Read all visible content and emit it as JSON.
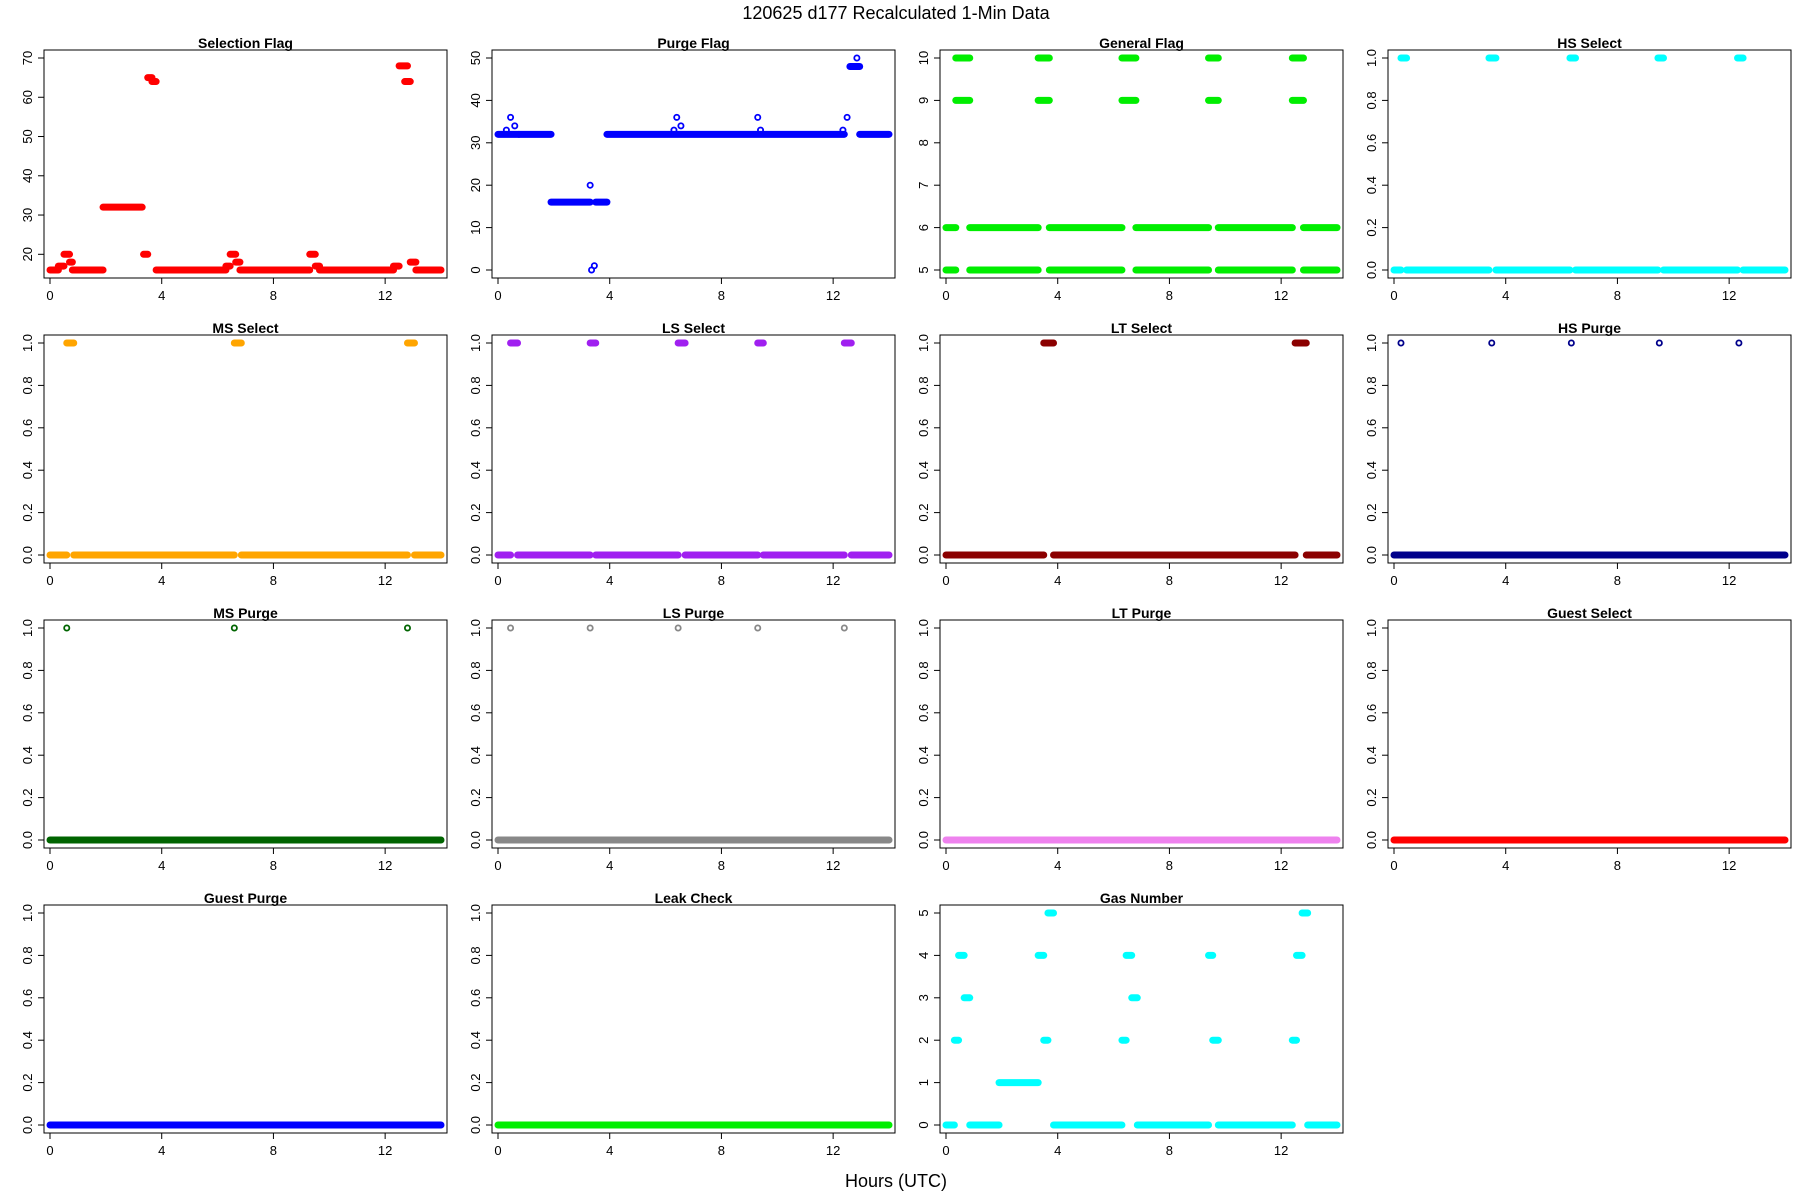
{
  "figure": {
    "title": "120625   d177   Recalculated 1-Min Data",
    "xlabel": "Hours (UTC)"
  },
  "chart_data": [
    {
      "type": "scatter",
      "title": "Selection Flag",
      "color": "#ff0000",
      "xlim": [
        0,
        14
      ],
      "ylim": [
        16,
        70
      ],
      "xticks": [
        0,
        4,
        8,
        12
      ],
      "yticks": [
        20,
        30,
        40,
        50,
        60,
        70
      ],
      "segments": [
        {
          "x": [
            0,
            0.3
          ],
          "y": 16
        },
        {
          "x": [
            0.3,
            0.5
          ],
          "y": 17
        },
        {
          "x": [
            0.5,
            0.7
          ],
          "y": 20
        },
        {
          "x": [
            0.7,
            0.8
          ],
          "y": 18
        },
        {
          "x": [
            0.8,
            1.9
          ],
          "y": 16
        },
        {
          "x": [
            1.9,
            3.3
          ],
          "y": 32
        },
        {
          "x": [
            3.35,
            3.5
          ],
          "y": 20
        },
        {
          "x": [
            3.5,
            3.65
          ],
          "y": 65
        },
        {
          "x": [
            3.65,
            3.8
          ],
          "y": 64
        },
        {
          "x": [
            3.8,
            6.3
          ],
          "y": 16
        },
        {
          "x": [
            6.3,
            6.45
          ],
          "y": 17
        },
        {
          "x": [
            6.45,
            6.65
          ],
          "y": 20
        },
        {
          "x": [
            6.65,
            6.8
          ],
          "y": 18
        },
        {
          "x": [
            6.8,
            9.3
          ],
          "y": 16
        },
        {
          "x": [
            9.3,
            9.5
          ],
          "y": 20
        },
        {
          "x": [
            9.5,
            9.65
          ],
          "y": 17
        },
        {
          "x": [
            9.65,
            12.3
          ],
          "y": 16
        },
        {
          "x": [
            12.3,
            12.5
          ],
          "y": 17
        },
        {
          "x": [
            12.5,
            12.8
          ],
          "y": 68
        },
        {
          "x": [
            12.7,
            12.9
          ],
          "y": 64
        },
        {
          "x": [
            12.9,
            13.1
          ],
          "y": 18
        },
        {
          "x": [
            13.1,
            14
          ],
          "y": 16
        }
      ],
      "points": []
    },
    {
      "type": "scatter",
      "title": "Purge Flag",
      "color": "#0000ff",
      "xlim": [
        0,
        14
      ],
      "ylim": [
        0,
        50
      ],
      "xticks": [
        0,
        4,
        8,
        12
      ],
      "yticks": [
        0,
        10,
        20,
        30,
        40,
        50
      ],
      "segments": [
        {
          "x": [
            0,
            1.9
          ],
          "y": 32
        },
        {
          "x": [
            1.9,
            3.3
          ],
          "y": 16
        },
        {
          "x": [
            3.5,
            3.9
          ],
          "y": 16
        },
        {
          "x": [
            3.9,
            12.4
          ],
          "y": 32
        },
        {
          "x": [
            12.6,
            12.95
          ],
          "y": 48
        },
        {
          "x": [
            12.95,
            14
          ],
          "y": 32
        }
      ],
      "points": [
        {
          "x": 0.3,
          "y": 33
        },
        {
          "x": 0.45,
          "y": 36
        },
        {
          "x": 0.6,
          "y": 34
        },
        {
          "x": 0.75,
          "y": 32
        },
        {
          "x": 3.3,
          "y": 20
        },
        {
          "x": 3.35,
          "y": 0
        },
        {
          "x": 3.45,
          "y": 1
        },
        {
          "x": 6.3,
          "y": 33
        },
        {
          "x": 6.4,
          "y": 36
        },
        {
          "x": 6.55,
          "y": 34
        },
        {
          "x": 9.3,
          "y": 36
        },
        {
          "x": 9.4,
          "y": 33
        },
        {
          "x": 12.35,
          "y": 33
        },
        {
          "x": 12.5,
          "y": 36
        },
        {
          "x": 12.85,
          "y": 50
        }
      ]
    },
    {
      "type": "scatter",
      "title": "General Flag",
      "color": "#00ee00",
      "xlim": [
        0,
        14
      ],
      "ylim": [
        5,
        10
      ],
      "xticks": [
        0,
        4,
        8,
        12
      ],
      "yticks": [
        5,
        6,
        7,
        8,
        9,
        10
      ],
      "segments": [
        {
          "x": [
            0,
            0.35
          ],
          "y": 5
        },
        {
          "x": [
            0,
            0.35
          ],
          "y": 6
        },
        {
          "x": [
            0.35,
            0.85
          ],
          "y": 10
        },
        {
          "x": [
            0.35,
            0.85
          ],
          "y": 9
        },
        {
          "x": [
            0.85,
            3.3
          ],
          "y": 5
        },
        {
          "x": [
            0.85,
            3.3
          ],
          "y": 6
        },
        {
          "x": [
            3.3,
            3.7
          ],
          "y": 10
        },
        {
          "x": [
            3.3,
            3.7
          ],
          "y": 9
        },
        {
          "x": [
            3.7,
            6.3
          ],
          "y": 5
        },
        {
          "x": [
            3.7,
            6.3
          ],
          "y": 6
        },
        {
          "x": [
            6.3,
            6.8
          ],
          "y": 10
        },
        {
          "x": [
            6.3,
            6.8
          ],
          "y": 9
        },
        {
          "x": [
            6.8,
            9.4
          ],
          "y": 5
        },
        {
          "x": [
            6.8,
            9.4
          ],
          "y": 6
        },
        {
          "x": [
            9.4,
            9.75
          ],
          "y": 10
        },
        {
          "x": [
            9.4,
            9.75
          ],
          "y": 9
        },
        {
          "x": [
            9.75,
            12.4
          ],
          "y": 5
        },
        {
          "x": [
            9.75,
            12.4
          ],
          "y": 6
        },
        {
          "x": [
            12.4,
            12.8
          ],
          "y": 10
        },
        {
          "x": [
            12.4,
            12.8
          ],
          "y": 9
        },
        {
          "x": [
            12.8,
            14
          ],
          "y": 5
        },
        {
          "x": [
            12.8,
            14
          ],
          "y": 6
        }
      ],
      "points": []
    },
    {
      "type": "scatter",
      "title": "HS Select",
      "color": "#00ffff",
      "xlim": [
        0,
        14
      ],
      "ylim": [
        0,
        1
      ],
      "xticks": [
        0,
        4,
        8,
        12
      ],
      "yticks": [
        0.0,
        0.2,
        0.4,
        0.6,
        0.8,
        1.0
      ],
      "segments": [
        {
          "x": [
            0,
            0.25
          ],
          "y": 0
        },
        {
          "x": [
            0.25,
            0.45
          ],
          "y": 1
        },
        {
          "x": [
            0.45,
            3.4
          ],
          "y": 0
        },
        {
          "x": [
            3.4,
            3.65
          ],
          "y": 1
        },
        {
          "x": [
            3.65,
            6.3
          ],
          "y": 0
        },
        {
          "x": [
            6.3,
            6.5
          ],
          "y": 1
        },
        {
          "x": [
            6.5,
            9.45
          ],
          "y": 0
        },
        {
          "x": [
            9.45,
            9.65
          ],
          "y": 1
        },
        {
          "x": [
            9.65,
            12.3
          ],
          "y": 0
        },
        {
          "x": [
            12.3,
            12.5
          ],
          "y": 1
        },
        {
          "x": [
            12.5,
            14
          ],
          "y": 0
        }
      ],
      "points": []
    },
    {
      "type": "scatter",
      "title": "MS Select",
      "color": "#ffa500",
      "xlim": [
        0,
        14
      ],
      "ylim": [
        0,
        1
      ],
      "xticks": [
        0,
        4,
        8,
        12
      ],
      "yticks": [
        0.0,
        0.2,
        0.4,
        0.6,
        0.8,
        1.0
      ],
      "segments": [
        {
          "x": [
            0,
            0.6
          ],
          "y": 0
        },
        {
          "x": [
            0.6,
            0.85
          ],
          "y": 1
        },
        {
          "x": [
            0.85,
            6.6
          ],
          "y": 0
        },
        {
          "x": [
            6.6,
            6.85
          ],
          "y": 1
        },
        {
          "x": [
            6.85,
            12.8
          ],
          "y": 0
        },
        {
          "x": [
            12.8,
            13.05
          ],
          "y": 1
        },
        {
          "x": [
            13.05,
            14
          ],
          "y": 0
        }
      ],
      "points": []
    },
    {
      "type": "scatter",
      "title": "LS Select",
      "color": "#a020f0",
      "xlim": [
        0,
        14
      ],
      "ylim": [
        0,
        1
      ],
      "xticks": [
        0,
        4,
        8,
        12
      ],
      "yticks": [
        0.0,
        0.2,
        0.4,
        0.6,
        0.8,
        1.0
      ],
      "segments": [
        {
          "x": [
            0,
            0.45
          ],
          "y": 0
        },
        {
          "x": [
            0.45,
            0.7
          ],
          "y": 1
        },
        {
          "x": [
            0.7,
            3.3
          ],
          "y": 0
        },
        {
          "x": [
            3.3,
            3.5
          ],
          "y": 1
        },
        {
          "x": [
            3.5,
            6.45
          ],
          "y": 0
        },
        {
          "x": [
            6.45,
            6.7
          ],
          "y": 1
        },
        {
          "x": [
            6.7,
            9.3
          ],
          "y": 0
        },
        {
          "x": [
            9.3,
            9.5
          ],
          "y": 1
        },
        {
          "x": [
            9.5,
            12.4
          ],
          "y": 0
        },
        {
          "x": [
            12.4,
            12.65
          ],
          "y": 1
        },
        {
          "x": [
            12.65,
            14
          ],
          "y": 0
        }
      ],
      "points": []
    },
    {
      "type": "scatter",
      "title": "LT Select",
      "color": "#8b0000",
      "xlim": [
        0,
        14
      ],
      "ylim": [
        0,
        1
      ],
      "xticks": [
        0,
        4,
        8,
        12
      ],
      "yticks": [
        0.0,
        0.2,
        0.4,
        0.6,
        0.8,
        1.0
      ],
      "segments": [
        {
          "x": [
            0,
            3.5
          ],
          "y": 0
        },
        {
          "x": [
            3.5,
            3.85
          ],
          "y": 1
        },
        {
          "x": [
            3.85,
            12.5
          ],
          "y": 0
        },
        {
          "x": [
            12.5,
            12.9
          ],
          "y": 1
        },
        {
          "x": [
            12.9,
            14
          ],
          "y": 0
        }
      ],
      "points": []
    },
    {
      "type": "scatter",
      "title": "HS Purge",
      "color": "#00008b",
      "xlim": [
        0,
        14
      ],
      "ylim": [
        0,
        1
      ],
      "xticks": [
        0,
        4,
        8,
        12
      ],
      "yticks": [
        0.0,
        0.2,
        0.4,
        0.6,
        0.8,
        1.0
      ],
      "segments": [
        {
          "x": [
            0,
            14
          ],
          "y": 0
        }
      ],
      "points": [
        {
          "x": 0.25,
          "y": 1
        },
        {
          "x": 3.5,
          "y": 1
        },
        {
          "x": 6.35,
          "y": 1
        },
        {
          "x": 9.5,
          "y": 1
        },
        {
          "x": 12.35,
          "y": 1
        }
      ]
    },
    {
      "type": "scatter",
      "title": "MS Purge",
      "color": "#006400",
      "xlim": [
        0,
        14
      ],
      "ylim": [
        0,
        1
      ],
      "xticks": [
        0,
        4,
        8,
        12
      ],
      "yticks": [
        0.0,
        0.2,
        0.4,
        0.6,
        0.8,
        1.0
      ],
      "segments": [
        {
          "x": [
            0,
            14
          ],
          "y": 0
        }
      ],
      "points": [
        {
          "x": 0.6,
          "y": 1
        },
        {
          "x": 6.6,
          "y": 1
        },
        {
          "x": 12.8,
          "y": 1
        }
      ]
    },
    {
      "type": "scatter",
      "title": "LS Purge",
      "color": "#888888",
      "xlim": [
        0,
        14
      ],
      "ylim": [
        0,
        1
      ],
      "xticks": [
        0,
        4,
        8,
        12
      ],
      "yticks": [
        0.0,
        0.2,
        0.4,
        0.6,
        0.8,
        1.0
      ],
      "segments": [
        {
          "x": [
            0,
            14
          ],
          "y": 0
        }
      ],
      "points": [
        {
          "x": 0.45,
          "y": 1
        },
        {
          "x": 3.3,
          "y": 1
        },
        {
          "x": 6.45,
          "y": 1
        },
        {
          "x": 9.3,
          "y": 1
        },
        {
          "x": 12.4,
          "y": 1
        }
      ]
    },
    {
      "type": "scatter",
      "title": "LT Purge",
      "color": "#ee82ee",
      "xlim": [
        0,
        14
      ],
      "ylim": [
        0,
        1
      ],
      "xticks": [
        0,
        4,
        8,
        12
      ],
      "yticks": [
        0.0,
        0.2,
        0.4,
        0.6,
        0.8,
        1.0
      ],
      "segments": [
        {
          "x": [
            0,
            14
          ],
          "y": 0
        }
      ],
      "points": []
    },
    {
      "type": "scatter",
      "title": "Guest Select",
      "color": "#ff0000",
      "xlim": [
        0,
        14
      ],
      "ylim": [
        0,
        1
      ],
      "xticks": [
        0,
        4,
        8,
        12
      ],
      "yticks": [
        0.0,
        0.2,
        0.4,
        0.6,
        0.8,
        1.0
      ],
      "segments": [
        {
          "x": [
            0,
            14
          ],
          "y": 0
        }
      ],
      "points": []
    },
    {
      "type": "scatter",
      "title": "Guest Purge",
      "color": "#0000ff",
      "xlim": [
        0,
        14
      ],
      "ylim": [
        0,
        1
      ],
      "xticks": [
        0,
        4,
        8,
        12
      ],
      "yticks": [
        0.0,
        0.2,
        0.4,
        0.6,
        0.8,
        1.0
      ],
      "segments": [
        {
          "x": [
            0,
            14
          ],
          "y": 0
        }
      ],
      "points": []
    },
    {
      "type": "scatter",
      "title": "Leak Check",
      "color": "#00ee00",
      "xlim": [
        0,
        14
      ],
      "ylim": [
        0,
        1
      ],
      "xticks": [
        0,
        4,
        8,
        12
      ],
      "yticks": [
        0.0,
        0.2,
        0.4,
        0.6,
        0.8,
        1.0
      ],
      "segments": [
        {
          "x": [
            0,
            14
          ],
          "y": 0
        }
      ],
      "points": []
    },
    {
      "type": "scatter",
      "title": "Gas Number",
      "color": "#00ffff",
      "xlim": [
        0,
        14
      ],
      "ylim": [
        0,
        5
      ],
      "xticks": [
        0,
        4,
        8,
        12
      ],
      "yticks": [
        0,
        1,
        2,
        3,
        4,
        5
      ],
      "segments": [
        {
          "x": [
            0,
            0.3
          ],
          "y": 0
        },
        {
          "x": [
            0.3,
            0.45
          ],
          "y": 2
        },
        {
          "x": [
            0.45,
            0.65
          ],
          "y": 4
        },
        {
          "x": [
            0.65,
            0.85
          ],
          "y": 3
        },
        {
          "x": [
            0.85,
            1.9
          ],
          "y": 0
        },
        {
          "x": [
            1.9,
            3.3
          ],
          "y": 1
        },
        {
          "x": [
            3.3,
            3.5
          ],
          "y": 4
        },
        {
          "x": [
            3.5,
            3.65
          ],
          "y": 2
        },
        {
          "x": [
            3.65,
            3.85
          ],
          "y": 5
        },
        {
          "x": [
            3.85,
            6.3
          ],
          "y": 0
        },
        {
          "x": [
            6.3,
            6.45
          ],
          "y": 2
        },
        {
          "x": [
            6.45,
            6.65
          ],
          "y": 4
        },
        {
          "x": [
            6.65,
            6.85
          ],
          "y": 3
        },
        {
          "x": [
            6.85,
            9.4
          ],
          "y": 0
        },
        {
          "x": [
            9.4,
            9.55
          ],
          "y": 4
        },
        {
          "x": [
            9.55,
            9.75
          ],
          "y": 2
        },
        {
          "x": [
            9.75,
            12.4
          ],
          "y": 0
        },
        {
          "x": [
            12.4,
            12.55
          ],
          "y": 2
        },
        {
          "x": [
            12.55,
            12.75
          ],
          "y": 4
        },
        {
          "x": [
            12.75,
            12.95
          ],
          "y": 5
        },
        {
          "x": [
            12.95,
            14
          ],
          "y": 0
        }
      ],
      "points": []
    }
  ]
}
